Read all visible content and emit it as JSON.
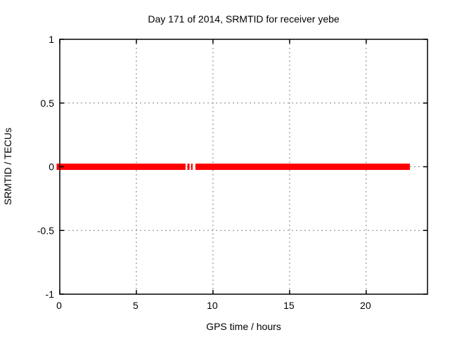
{
  "chart": {
    "title": "Day 171 of 2014, SRMTID for receiver yebe",
    "xlabel": "GPS time / hours",
    "ylabel": "SRMTID / TECUs"
  },
  "chart_data": {
    "type": "scatter",
    "marker": "filled-square",
    "marker_size_px": 9,
    "series": [
      {
        "name": "srmtid-points",
        "color": "#ff0000",
        "y": 0,
        "x_segments_hours": [
          [
            0,
            8.21
          ],
          [
            8.33,
            8.47
          ],
          [
            8.57,
            8.67
          ],
          [
            8.86,
            22.85
          ]
        ]
      }
    ],
    "xlim": [
      0,
      24
    ],
    "ylim": [
      -1,
      1
    ],
    "xticks": [
      0,
      5,
      10,
      15,
      20
    ],
    "xtick_labels": [
      "0",
      "5",
      "10",
      "15",
      "20"
    ],
    "yticks": [
      -1,
      -0.5,
      0,
      0.5,
      1
    ],
    "ytick_labels": [
      "-1",
      "-0.5",
      "0",
      "0.5",
      "1"
    ],
    "grid": {
      "style": "dashed",
      "color": "#808080",
      "x_at": [
        5,
        10,
        15,
        20
      ],
      "y_at": [
        -0.5,
        0,
        0.5
      ]
    },
    "frame_color": "#000000",
    "background": "#ffffff"
  }
}
